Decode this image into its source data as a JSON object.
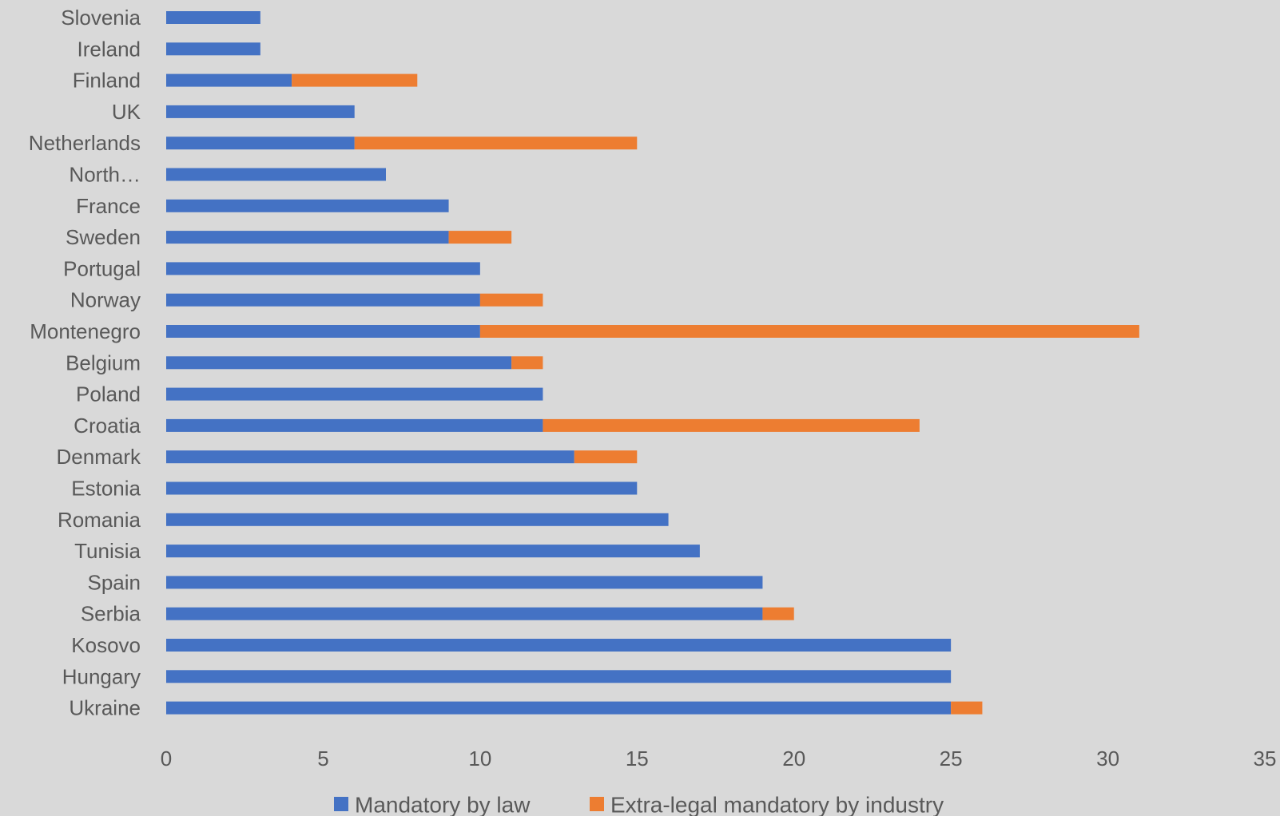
{
  "chart_data": {
    "type": "bar",
    "orientation": "horizontal",
    "stacked": true,
    "title": "",
    "xlabel": "",
    "ylabel": "",
    "xlim": [
      0,
      35
    ],
    "xticks": [
      0,
      5,
      10,
      15,
      20,
      25,
      30,
      35
    ],
    "grid": false,
    "legend_position": "bottom",
    "categories": [
      "Slovenia",
      "Ireland",
      "Finland",
      "UK",
      "Netherlands",
      "North…",
      "France",
      "Sweden",
      "Portugal",
      "Norway",
      "Montenegro",
      "Belgium",
      "Poland",
      "Croatia",
      "Denmark",
      "Estonia",
      "Romania",
      "Tunisia",
      "Spain",
      "Serbia",
      "Kosovo",
      "Hungary",
      "Ukraine"
    ],
    "series": [
      {
        "name": "Mandatory by law",
        "color": "#4472c4",
        "values": [
          3,
          3,
          4,
          6,
          6,
          7,
          9,
          9,
          10,
          10,
          10,
          11,
          12,
          12,
          13,
          15,
          16,
          17,
          19,
          19,
          25,
          25,
          25
        ]
      },
      {
        "name": "Extra-legal mandatory by industry",
        "color": "#ed7d31",
        "values": [
          0,
          0,
          4,
          0,
          9,
          0,
          0,
          2,
          0,
          2,
          21,
          1,
          0,
          12,
          2,
          0,
          0,
          0,
          0,
          1,
          0,
          0,
          1
        ]
      }
    ]
  },
  "background_color": "#d9d9d9",
  "text_color": "#595959"
}
